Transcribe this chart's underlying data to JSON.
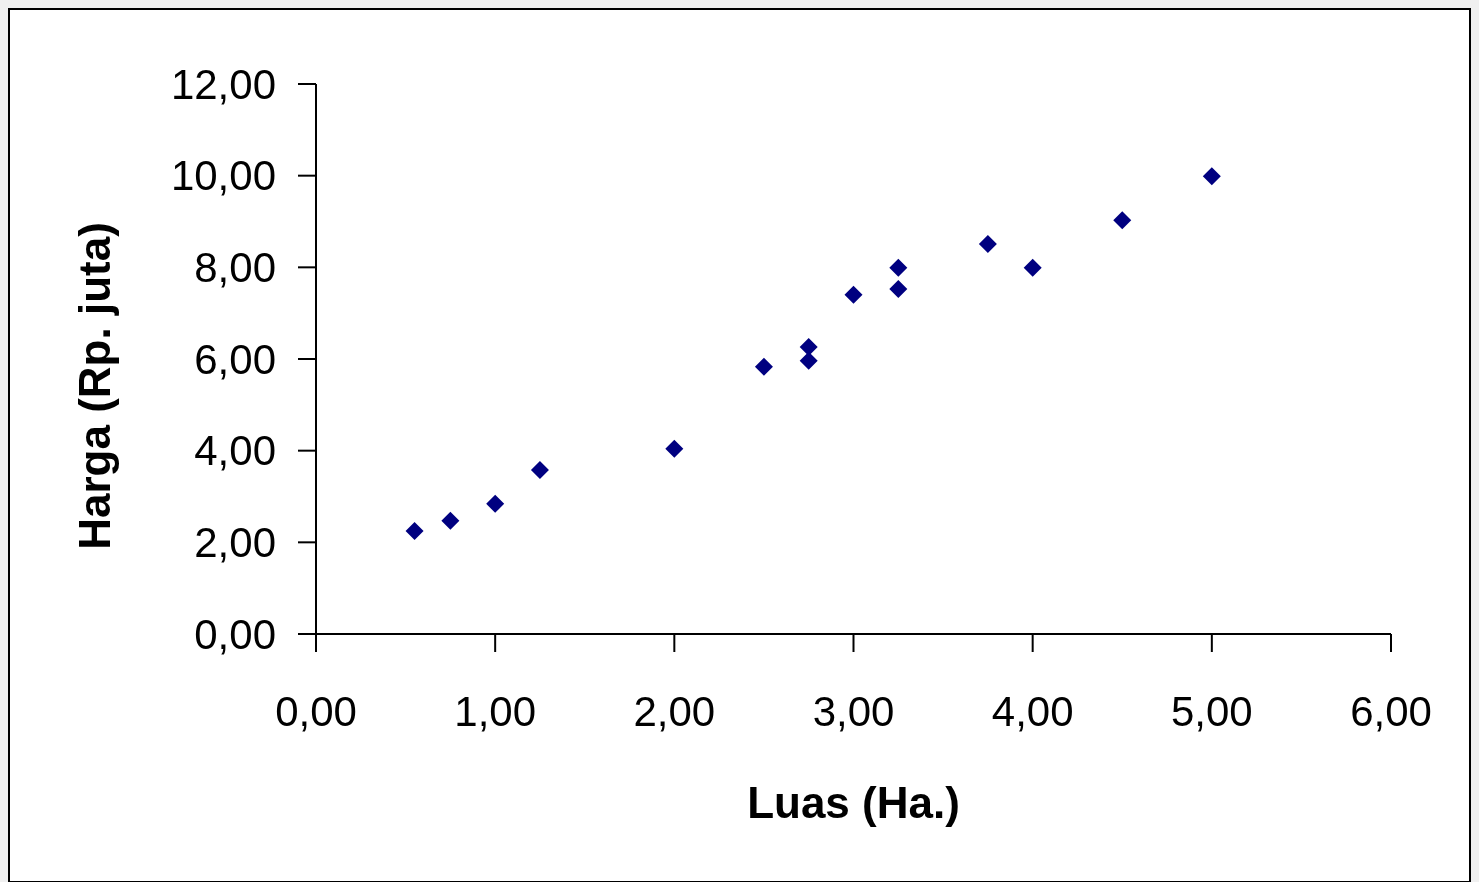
{
  "chart_data": {
    "type": "scatter",
    "xlabel": "Luas (Ha.)",
    "ylabel": "Harga (Rp. juta)",
    "marker": "diamond",
    "x": [
      0.55,
      0.75,
      1.0,
      1.25,
      2.0,
      2.5,
      2.75,
      2.75,
      3.0,
      3.25,
      3.25,
      3.75,
      4.0,
      4.5,
      5.0
    ],
    "series": [
      {
        "color": "#000080",
        "values": [
          2.25,
          2.47,
          2.84,
          3.58,
          4.04,
          5.83,
          6.26,
          5.96,
          7.4,
          7.99,
          7.53,
          8.51,
          7.99,
          9.03,
          9.99
        ]
      }
    ],
    "xlim": [
      0,
      6
    ],
    "ylim": [
      0,
      12
    ],
    "xticks": [
      {
        "value": 0,
        "label": "0,00"
      },
      {
        "value": 1,
        "label": "1,00"
      },
      {
        "value": 2,
        "label": "2,00"
      },
      {
        "value": 3,
        "label": "3,00"
      },
      {
        "value": 4,
        "label": "4,00"
      },
      {
        "value": 5,
        "label": "5,00"
      },
      {
        "value": 6,
        "label": "6,00"
      }
    ],
    "yticks": [
      {
        "value": 0,
        "label": "0,00"
      },
      {
        "value": 2,
        "label": "2,00"
      },
      {
        "value": 4,
        "label": "4,00"
      },
      {
        "value": 6,
        "label": "6,00"
      },
      {
        "value": 8,
        "label": "8,00"
      },
      {
        "value": 10,
        "label": "10,00"
      },
      {
        "value": 12,
        "label": "12,00"
      }
    ]
  }
}
